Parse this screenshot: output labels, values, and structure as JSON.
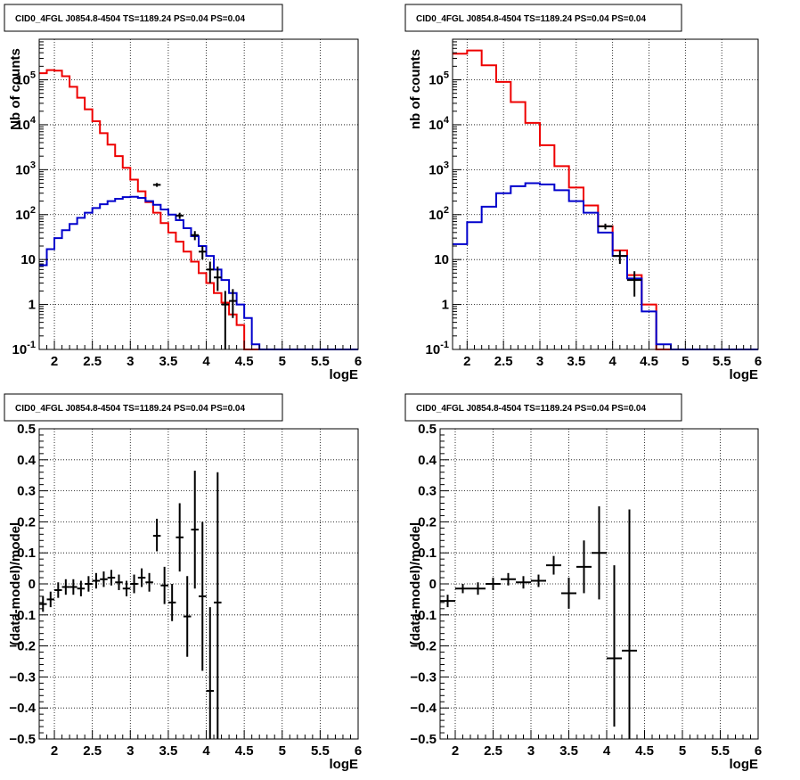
{
  "colors": {
    "model": "#ee0000",
    "source": "#0000cc",
    "data": "#000000",
    "grid": "#000000"
  },
  "chart_data": [
    {
      "type": "line",
      "panel": "top-left",
      "title": "CID0_4FGL J0854.8-4504 TS=1189.24 PS=0.04 PS=0.04",
      "xlabel": "logE",
      "ylabel": "Nb of counts",
      "xlim": [
        1.8,
        6
      ],
      "ylim": [
        0.1,
        800000
      ],
      "log_y": true,
      "grid": true,
      "x_ticks": [
        2,
        2.5,
        3,
        3.5,
        4,
        4.5,
        5,
        5.5,
        6
      ],
      "x_tick_labels": [
        "2",
        "2.5",
        "3",
        "3.5",
        "4",
        "4.5",
        "5",
        "5.5",
        "6"
      ],
      "y_ticks": [
        0.1,
        1,
        10,
        100,
        1000,
        10000,
        100000
      ],
      "y_tick_labels": [
        "10^-1",
        "1",
        "10",
        "10^2",
        "10^3",
        "10^4",
        "10^5"
      ],
      "bin_edges": [
        1.8,
        1.9,
        2.0,
        2.1,
        2.2,
        2.3,
        2.4,
        2.5,
        2.6,
        2.7,
        2.8,
        2.9,
        3.0,
        3.1,
        3.2,
        3.3,
        3.4,
        3.5,
        3.6,
        3.7,
        3.8,
        3.9,
        4.0,
        4.1,
        4.2,
        4.3,
        4.4,
        4.5,
        4.6,
        4.7,
        4.8,
        4.9,
        5.0,
        5.1,
        5.2,
        5.3,
        5.4,
        5.5,
        5.6,
        5.7,
        5.8,
        5.9,
        6.0
      ],
      "series": [
        {
          "role": "model",
          "values": [
            140000,
            165000,
            160000,
            120000,
            70000,
            40000,
            22000,
            12000,
            6500,
            3600,
            2000,
            1100,
            600,
            330,
            190,
            110,
            65,
            40,
            25,
            15,
            9,
            5,
            3,
            1.8,
            1.1,
            0.6,
            0.35,
            0.1,
            0.1,
            0.1,
            0.1,
            0.1,
            0.1,
            0.1,
            0.1,
            0.1,
            0.1,
            0.1,
            0.1,
            0.1,
            0.1,
            0.1
          ]
        },
        {
          "role": "source",
          "values": [
            7.5,
            17,
            30,
            45,
            62,
            85,
            110,
            140,
            170,
            200,
            225,
            245,
            250,
            235,
            200,
            165,
            130,
            100,
            75,
            50,
            33,
            20,
            12,
            6,
            3.5,
            1.8,
            1,
            0.5,
            0.13,
            0.1,
            0.1,
            0.1,
            0.1,
            0.1,
            0.1,
            0.1,
            0.1,
            0.1,
            0.1,
            0.1,
            0.1,
            0.1
          ]
        }
      ],
      "points": [
        {
          "x": 3.35,
          "y": 460,
          "xerr": 0.05,
          "yerr_lo": 45,
          "yerr_hi": 45
        },
        {
          "x": 3.65,
          "y": 95,
          "xerr": 0.05,
          "yerr_lo": 15,
          "yerr_hi": 15
        },
        {
          "x": 3.85,
          "y": 35,
          "xerr": 0.05,
          "yerr_lo": 8,
          "yerr_hi": 8
        },
        {
          "x": 3.95,
          "y": 15,
          "xerr": 0.05,
          "yerr_lo": 5,
          "yerr_hi": 5
        },
        {
          "x": 4.05,
          "y": 6,
          "xerr": 0.05,
          "yerr_lo": 3,
          "yerr_hi": 3
        },
        {
          "x": 4.15,
          "y": 4,
          "xerr": 0.05,
          "yerr_lo": 2,
          "yerr_hi": 3
        },
        {
          "x": 4.25,
          "y": 1,
          "xerr": 0.05,
          "yerr_lo": 0.9,
          "yerr_hi": 1
        },
        {
          "x": 4.35,
          "y": 1.2,
          "xerr": 0.05,
          "yerr_lo": 0.7,
          "yerr_hi": 1
        }
      ]
    },
    {
      "type": "line",
      "panel": "top-right",
      "title": "CID0_4FGL J0854.8-4504 TS=1189.24 PS=0.04 PS=0.04",
      "xlabel": "logE",
      "ylabel": "nb of counts",
      "xlim": [
        1.8,
        6
      ],
      "ylim": [
        0.1,
        800000
      ],
      "log_y": true,
      "grid": true,
      "x_ticks": [
        2,
        2.5,
        3,
        3.5,
        4,
        4.5,
        5,
        5.5,
        6
      ],
      "x_tick_labels": [
        "2",
        "2.5",
        "3",
        "3.5",
        "4",
        "4.5",
        "5",
        "5.5",
        "6"
      ],
      "y_ticks": [
        0.1,
        1,
        10,
        100,
        1000,
        10000,
        100000
      ],
      "y_tick_labels": [
        "10^-1",
        "1",
        "10",
        "10^2",
        "10^3",
        "10^4",
        "10^5"
      ],
      "bin_edges": [
        1.8,
        2.0,
        2.2,
        2.4,
        2.6,
        2.8,
        3.0,
        3.2,
        3.4,
        3.6,
        3.8,
        4.0,
        4.2,
        4.4,
        4.6,
        4.8,
        5.0,
        5.2,
        5.4,
        5.6,
        5.8,
        6.0
      ],
      "series": [
        {
          "role": "model",
          "values": [
            380000,
            450000,
            210000,
            90000,
            32000,
            11000,
            3500,
            1200,
            400,
            160,
            55,
            16,
            4.5,
            1,
            0.1,
            0.1,
            0.1,
            0.1,
            0.1,
            0.1,
            0.1
          ]
        },
        {
          "role": "source",
          "values": [
            22,
            68,
            150,
            300,
            430,
            500,
            470,
            350,
            200,
            110,
            40,
            12,
            3.8,
            0.7,
            0.13,
            0.1,
            0.1,
            0.1,
            0.1,
            0.1,
            0.1
          ]
        }
      ],
      "points": [
        {
          "x": 3.9,
          "y": 55,
          "xerr": 0.1,
          "yerr_lo": 8,
          "yerr_hi": 8
        },
        {
          "x": 4.1,
          "y": 12,
          "xerr": 0.1,
          "yerr_lo": 4,
          "yerr_hi": 4
        },
        {
          "x": 4.3,
          "y": 3.5,
          "xerr": 0.1,
          "yerr_lo": 2,
          "yerr_hi": 2
        }
      ]
    },
    {
      "type": "scatter",
      "panel": "bottom-left",
      "title": "CID0_4FGL J0854.8-4504 TS=1189.24 PS=0.04 PS=0.04",
      "xlabel": "logE",
      "ylabel": "(data-model)/model",
      "xlim": [
        1.8,
        6
      ],
      "ylim": [
        -0.5,
        0.5
      ],
      "log_y": false,
      "grid": true,
      "x_ticks": [
        2,
        2.5,
        3,
        3.5,
        4,
        4.5,
        5,
        5.5,
        6
      ],
      "x_tick_labels": [
        "2",
        "2.5",
        "3",
        "3.5",
        "4",
        "4.5",
        "5",
        "5.5",
        "6"
      ],
      "y_ticks": [
        -0.5,
        -0.4,
        -0.3,
        -0.2,
        -0.1,
        0,
        0.1,
        0.2,
        0.3,
        0.4,
        0.5
      ],
      "y_tick_labels": [
        "−0.5",
        "−0.4",
        "−0.3",
        "−0.2",
        "−0.1",
        "0",
        "0.1",
        "0.2",
        "0.3",
        "0.4",
        "0.5"
      ],
      "points": [
        {
          "x": 1.85,
          "y": -0.065,
          "xerr": 0.05,
          "yerr_lo": 0.025,
          "yerr_hi": 0.025
        },
        {
          "x": 1.95,
          "y": -0.05,
          "xerr": 0.05,
          "yerr_lo": 0.025,
          "yerr_hi": 0.025
        },
        {
          "x": 2.05,
          "y": -0.02,
          "xerr": 0.05,
          "yerr_lo": 0.025,
          "yerr_hi": 0.025
        },
        {
          "x": 2.15,
          "y": -0.01,
          "xerr": 0.05,
          "yerr_lo": 0.025,
          "yerr_hi": 0.025
        },
        {
          "x": 2.25,
          "y": -0.01,
          "xerr": 0.05,
          "yerr_lo": 0.025,
          "yerr_hi": 0.025
        },
        {
          "x": 2.35,
          "y": -0.015,
          "xerr": 0.05,
          "yerr_lo": 0.025,
          "yerr_hi": 0.025
        },
        {
          "x": 2.45,
          "y": 0.0,
          "xerr": 0.05,
          "yerr_lo": 0.025,
          "yerr_hi": 0.025
        },
        {
          "x": 2.55,
          "y": 0.01,
          "xerr": 0.05,
          "yerr_lo": 0.025,
          "yerr_hi": 0.025
        },
        {
          "x": 2.65,
          "y": 0.015,
          "xerr": 0.05,
          "yerr_lo": 0.025,
          "yerr_hi": 0.025
        },
        {
          "x": 2.75,
          "y": 0.02,
          "xerr": 0.05,
          "yerr_lo": 0.025,
          "yerr_hi": 0.025
        },
        {
          "x": 2.85,
          "y": 0.005,
          "xerr": 0.05,
          "yerr_lo": 0.025,
          "yerr_hi": 0.025
        },
        {
          "x": 2.95,
          "y": -0.015,
          "xerr": 0.05,
          "yerr_lo": 0.025,
          "yerr_hi": 0.025
        },
        {
          "x": 3.05,
          "y": 0.0,
          "xerr": 0.05,
          "yerr_lo": 0.03,
          "yerr_hi": 0.03
        },
        {
          "x": 3.15,
          "y": 0.02,
          "xerr": 0.05,
          "yerr_lo": 0.03,
          "yerr_hi": 0.03
        },
        {
          "x": 3.25,
          "y": 0.005,
          "xerr": 0.05,
          "yerr_lo": 0.03,
          "yerr_hi": 0.03
        },
        {
          "x": 3.35,
          "y": 0.155,
          "xerr": 0.05,
          "yerr_lo": 0.05,
          "yerr_hi": 0.055
        },
        {
          "x": 3.45,
          "y": -0.005,
          "xerr": 0.05,
          "yerr_lo": 0.06,
          "yerr_hi": 0.06
        },
        {
          "x": 3.55,
          "y": -0.06,
          "xerr": 0.05,
          "yerr_lo": 0.06,
          "yerr_hi": 0.06
        },
        {
          "x": 3.65,
          "y": 0.15,
          "xerr": 0.05,
          "yerr_lo": 0.11,
          "yerr_hi": 0.11
        },
        {
          "x": 3.75,
          "y": -0.105,
          "xerr": 0.05,
          "yerr_lo": 0.13,
          "yerr_hi": 0.13
        },
        {
          "x": 3.85,
          "y": 0.175,
          "xerr": 0.05,
          "yerr_lo": 0.19,
          "yerr_hi": 0.19
        },
        {
          "x": 3.95,
          "y": -0.04,
          "xerr": 0.05,
          "yerr_lo": 0.24,
          "yerr_hi": 0.24
        },
        {
          "x": 4.05,
          "y": -0.345,
          "xerr": 0.05,
          "yerr_lo": 0.26,
          "yerr_hi": 0.27
        },
        {
          "x": 4.15,
          "y": -0.06,
          "xerr": 0.05,
          "yerr_lo": 0.44,
          "yerr_hi": 0.42
        }
      ]
    },
    {
      "type": "scatter",
      "panel": "bottom-right",
      "title": "CID0_4FGL J0854.8-4504 TS=1189.24 PS=0.04 PS=0.04",
      "xlabel": "logE",
      "ylabel": "(data-model)/model",
      "xlim": [
        1.8,
        6
      ],
      "ylim": [
        -0.5,
        0.5
      ],
      "log_y": false,
      "grid": true,
      "x_ticks": [
        2,
        2.5,
        3,
        3.5,
        4,
        4.5,
        5,
        5.5,
        6
      ],
      "x_tick_labels": [
        "2",
        "2.5",
        "3",
        "3.5",
        "4",
        "4.5",
        "5",
        "5.5",
        "6"
      ],
      "y_ticks": [
        -0.5,
        -0.4,
        -0.3,
        -0.2,
        -0.1,
        0,
        0.1,
        0.2,
        0.3,
        0.4,
        0.5
      ],
      "y_tick_labels": [
        "−0.5",
        "−0.4",
        "−0.3",
        "−0.2",
        "−0.1",
        "0",
        "0.1",
        "0.2",
        "0.3",
        "0.4",
        "0.5"
      ],
      "points": [
        {
          "x": 1.9,
          "y": -0.055,
          "xerr": 0.1,
          "yerr_lo": 0.02,
          "yerr_hi": 0.02
        },
        {
          "x": 2.1,
          "y": -0.015,
          "xerr": 0.1,
          "yerr_lo": 0.015,
          "yerr_hi": 0.015
        },
        {
          "x": 2.3,
          "y": -0.015,
          "xerr": 0.1,
          "yerr_lo": 0.02,
          "yerr_hi": 0.02
        },
        {
          "x": 2.5,
          "y": 0.0,
          "xerr": 0.1,
          "yerr_lo": 0.02,
          "yerr_hi": 0.02
        },
        {
          "x": 2.7,
          "y": 0.015,
          "xerr": 0.1,
          "yerr_lo": 0.02,
          "yerr_hi": 0.02
        },
        {
          "x": 2.9,
          "y": 0.005,
          "xerr": 0.1,
          "yerr_lo": 0.02,
          "yerr_hi": 0.02
        },
        {
          "x": 3.1,
          "y": 0.01,
          "xerr": 0.1,
          "yerr_lo": 0.02,
          "yerr_hi": 0.02
        },
        {
          "x": 3.3,
          "y": 0.06,
          "xerr": 0.1,
          "yerr_lo": 0.03,
          "yerr_hi": 0.03
        },
        {
          "x": 3.5,
          "y": -0.03,
          "xerr": 0.1,
          "yerr_lo": 0.05,
          "yerr_hi": 0.05
        },
        {
          "x": 3.7,
          "y": 0.055,
          "xerr": 0.1,
          "yerr_lo": 0.085,
          "yerr_hi": 0.085
        },
        {
          "x": 3.9,
          "y": 0.1,
          "xerr": 0.1,
          "yerr_lo": 0.15,
          "yerr_hi": 0.15
        },
        {
          "x": 4.1,
          "y": -0.24,
          "xerr": 0.1,
          "yerr_lo": 0.22,
          "yerr_hi": 0.3
        },
        {
          "x": 4.3,
          "y": -0.215,
          "xerr": 0.1,
          "yerr_lo": 0.3,
          "yerr_hi": 0.455
        }
      ]
    }
  ]
}
